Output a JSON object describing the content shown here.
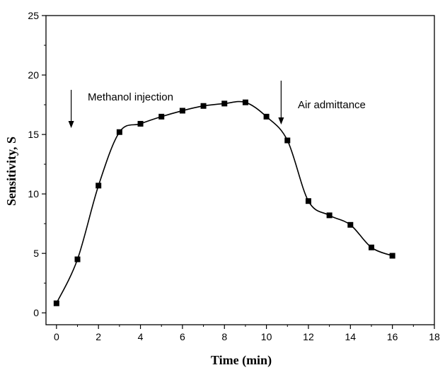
{
  "chart_data": {
    "type": "line",
    "title": "",
    "xlabel": "Time (min)",
    "ylabel": "Sensitivity, S",
    "xlim": [
      -0.5,
      18
    ],
    "ylim": [
      -1,
      25
    ],
    "x_ticks": [
      0,
      2,
      4,
      6,
      8,
      10,
      12,
      14,
      16,
      18
    ],
    "x_tick_labels": [
      "0",
      "2",
      "4",
      "6",
      "8",
      "10",
      "12",
      "14",
      "16",
      "18"
    ],
    "y_ticks": [
      0,
      5,
      10,
      15,
      20,
      25
    ],
    "y_tick_labels": [
      "0",
      "5",
      "10",
      "15",
      "20",
      "25"
    ],
    "grid": false,
    "series": [
      {
        "name": "Sensitivity",
        "marker": "square",
        "x": [
          0,
          1,
          2,
          3,
          4,
          5,
          6,
          7,
          8,
          9,
          10,
          11,
          12,
          13,
          14,
          15,
          16
        ],
        "y": [
          0.8,
          4.5,
          10.7,
          15.2,
          15.9,
          16.5,
          17.0,
          17.4,
          17.6,
          17.7,
          16.5,
          14.5,
          9.4,
          8.2,
          7.4,
          5.5,
          4.8
        ]
      }
    ],
    "annotations": [
      {
        "text": "Methanol injection",
        "arrow_x": 0.7
      },
      {
        "text": "Air admittance",
        "arrow_x": 10.7
      }
    ]
  },
  "colors": {
    "line": "#000000",
    "marker": "#000000",
    "axis": "#000000"
  }
}
